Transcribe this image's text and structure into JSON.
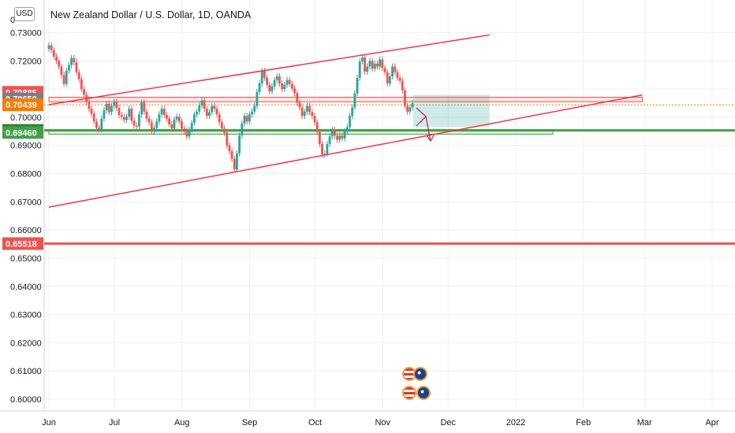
{
  "currency_button": "USD",
  "chart_data": {
    "type": "candlestick",
    "title": "New Zealand Dollar / U.S. Dollar, 1D, OANDA",
    "ylim": [
      0.5958,
      0.7416
    ],
    "y_ticks": [
      "0.60000",
      "0.61000",
      "0.62000",
      "0.63000",
      "0.64000",
      "0.65000",
      "0.66000",
      "0.67000",
      "0.68000",
      "0.69000",
      "0.70000",
      "0.71000",
      "0.72000",
      "0.73000"
    ],
    "y_tick_values": [
      0.6,
      0.61,
      0.62,
      0.63,
      0.64,
      0.65,
      0.66,
      0.67,
      0.68,
      0.69,
      0.7,
      0.71,
      0.72,
      0.73
    ],
    "y_partial_top": "0",
    "x_ticks": [
      {
        "label": "Jun",
        "date": "2021-06-01"
      },
      {
        "label": "Jul",
        "date": "2021-07-01"
      },
      {
        "label": "Aug",
        "date": "2021-08-01"
      },
      {
        "label": "Sep",
        "date": "2021-09-01"
      },
      {
        "label": "Oct",
        "date": "2021-10-01"
      },
      {
        "label": "Nov",
        "date": "2021-11-01"
      },
      {
        "label": "Dec",
        "date": "2021-12-01"
      },
      {
        "label": "2022",
        "date": "2022-01-01"
      },
      {
        "label": "Feb",
        "date": "2022-02-01"
      },
      {
        "label": "Mar",
        "date": "2022-03-01"
      },
      {
        "label": "Apr",
        "date": "2022-04-01"
      }
    ],
    "price_labels": [
      {
        "text": "0.70885",
        "value": 0.70885,
        "color": "#ef5350"
      },
      {
        "text": "0.70650",
        "value": 0.7065,
        "color": "#7a7f88"
      },
      {
        "text": "0.70439",
        "value": 0.70439,
        "color": "#f57c00"
      },
      {
        "text": "0.69533",
        "value": 0.69533,
        "color": "#2e7d32"
      },
      {
        "text": "0.69460",
        "value": 0.6946,
        "color": "#43a047"
      },
      {
        "text": "0.65518",
        "value": 0.65518,
        "color": "#ef5350"
      }
    ],
    "candles_close": [
      0.7255,
      0.7238,
      0.7215,
      0.72,
      0.718,
      0.715,
      0.7118,
      0.7165,
      0.7185,
      0.721,
      0.7195,
      0.716,
      0.7135,
      0.71,
      0.708,
      0.7055,
      0.703,
      0.7012,
      0.6985,
      0.6962,
      0.6958,
      0.6995,
      0.7025,
      0.7048,
      0.7018,
      0.704,
      0.7055,
      0.7033,
      0.7008,
      0.7001,
      0.699,
      0.7002,
      0.703,
      0.6988,
      0.697,
      0.6968,
      0.701,
      0.7052,
      0.702,
      0.6995,
      0.6982,
      0.695,
      0.6962,
      0.6985,
      0.701,
      0.703,
      0.7008,
      0.6995,
      0.6975,
      0.696,
      0.6992,
      0.7002,
      0.6985,
      0.696,
      0.6952,
      0.6932,
      0.6955,
      0.698,
      0.701,
      0.702,
      0.7042,
      0.706,
      0.703,
      0.7005,
      0.7018,
      0.704,
      0.703,
      0.701,
      0.6982,
      0.696,
      0.6945,
      0.69,
      0.688,
      0.6852,
      0.6815,
      0.6872,
      0.6935,
      0.6978,
      0.7005,
      0.6985,
      0.701,
      0.702,
      0.704,
      0.709,
      0.712,
      0.7165,
      0.714,
      0.7115,
      0.7092,
      0.711,
      0.7132,
      0.7145,
      0.712,
      0.71,
      0.7115,
      0.7132,
      0.7118,
      0.7102,
      0.7085,
      0.7052,
      0.7035,
      0.7005,
      0.702,
      0.704,
      0.7018,
      0.7005,
      0.6982,
      0.6948,
      0.6905,
      0.6868,
      0.687,
      0.6905,
      0.6932,
      0.6955,
      0.6935,
      0.692,
      0.6935,
      0.6925,
      0.695,
      0.6965,
      0.7005,
      0.7035,
      0.7085,
      0.714,
      0.7198,
      0.7212,
      0.7162,
      0.718,
      0.72,
      0.7172,
      0.719,
      0.718,
      0.7205,
      0.7175,
      0.716,
      0.712,
      0.7145,
      0.718,
      0.716,
      0.714,
      0.713,
      0.7095,
      0.704,
      0.702,
      0.7035,
      0.705
    ],
    "trendlines": [
      {
        "name": "channel-upper",
        "x": [
          "2021-06-01",
          "2021-12-20"
        ],
        "y": [
          0.7045,
          0.7292
        ],
        "color": "#f23645"
      },
      {
        "name": "channel-lower",
        "x": [
          "2021-06-01",
          "2022-02-28"
        ],
        "y": [
          0.6681,
          0.7079
        ],
        "color": "#f23645"
      }
    ],
    "zones": [
      {
        "name": "resistance-zone",
        "y": [
          0.7055,
          0.7071
        ],
        "x": [
          "2021-06-01",
          "2022-02-28"
        ],
        "color": "#ef5350"
      },
      {
        "name": "support-zone",
        "y": [
          0.694,
          0.6956
        ],
        "x": [
          "2021-06-01",
          "2022-01-18"
        ],
        "color": "#43a047"
      }
    ],
    "hlines": [
      {
        "name": "level-0.69533",
        "y": 0.69533,
        "color": "#43a047"
      },
      {
        "name": "level-0.65518",
        "y": 0.65518,
        "color": "#ef5350"
      },
      {
        "name": "current-price",
        "y": 0.70439,
        "color": "#f57c00"
      }
    ],
    "projection_box": {
      "x": [
        "2021-11-15",
        "2021-12-20"
      ],
      "y": [
        0.6965,
        0.708
      ]
    }
  }
}
